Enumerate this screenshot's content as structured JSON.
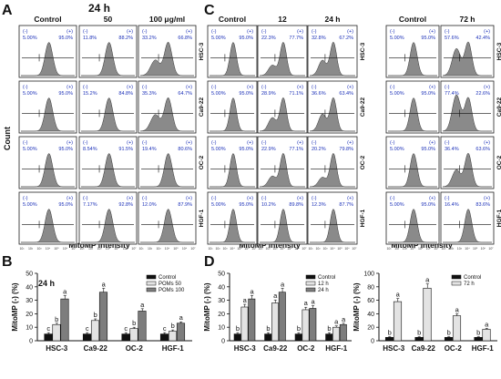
{
  "panel_letters": {
    "A": "A",
    "B": "B",
    "C": "C",
    "D": "D"
  },
  "headers": {
    "A_time": "24 h",
    "A_cols": [
      "Control",
      "50",
      "100 μg/ml"
    ],
    "C_cols": [
      "Control",
      "12",
      "24 h"
    ],
    "C2_cols": [
      "Control",
      "72 h"
    ]
  },
  "row_labels": [
    "HSC-3",
    "Ca9-22",
    "OC-2",
    "HGF-1"
  ],
  "gate_labels": {
    "minus": "(-)",
    "plus": "(+)"
  },
  "axis_labels": {
    "count": "Count",
    "mitomp": "MitoMP intensity",
    "ylabel_bars": "MitoMP (-) (%)",
    "B_time": "24 h"
  },
  "flow_ticks": [
    "10¹",
    "10²",
    "10³",
    "10⁴",
    "10⁵",
    "10⁶",
    "10⁷"
  ],
  "pct": {
    "A": [
      [
        "5.00%",
        "95.0%"
      ],
      [
        "11.8%",
        "88.2%"
      ],
      [
        "33.2%",
        "66.8%"
      ],
      [
        "5.00%",
        "95.0%"
      ],
      [
        "15.2%",
        "84.8%"
      ],
      [
        "35.3%",
        "64.7%"
      ],
      [
        "5.00%",
        "95.0%"
      ],
      [
        "8.54%",
        "91.5%"
      ],
      [
        "19.4%",
        "80.6%"
      ],
      [
        "5.00%",
        "95.0%"
      ],
      [
        "7.17%",
        "92.8%"
      ],
      [
        "12.0%",
        "87.9%"
      ]
    ],
    "C": [
      [
        "5.00%",
        "95.0%"
      ],
      [
        "22.3%",
        "77.7%"
      ],
      [
        "32.8%",
        "67.2%"
      ],
      [
        "5.00%",
        "95.0%"
      ],
      [
        "28.9%",
        "71.1%"
      ],
      [
        "36.6%",
        "63.4%"
      ],
      [
        "5.00%",
        "95.0%"
      ],
      [
        "22.9%",
        "77.1%"
      ],
      [
        "20.2%",
        "79.8%"
      ],
      [
        "5.00%",
        "95.0%"
      ],
      [
        "10.2%",
        "89.8%"
      ],
      [
        "12.3%",
        "87.7%"
      ]
    ],
    "C2": [
      [
        "5.00%",
        "95.0%"
      ],
      [
        "57.6%",
        "42.4%"
      ],
      [
        "5.00%",
        "95.0%"
      ],
      [
        "77.4%",
        "22.6%"
      ],
      [
        "5.00%",
        "95.0%"
      ],
      [
        "36.4%",
        "63.6%"
      ],
      [
        "5.00%",
        "95.0%"
      ],
      [
        "16.4%",
        "83.6%"
      ]
    ]
  },
  "chart_data": [
    {
      "type": "bar",
      "panel": "B",
      "title": "24 h",
      "categories": [
        "HSC-3",
        "Ca9-22",
        "OC-2",
        "HGF-1"
      ],
      "ylabel": "MitoMP (-) (%)",
      "ylim": [
        0,
        50
      ],
      "yticks": [
        0,
        10,
        20,
        30,
        40,
        50
      ],
      "legend_position": "top-right",
      "series": [
        {
          "name": "Control",
          "color": "#111111",
          "values": [
            5,
            5,
            5,
            5
          ],
          "letters": [
            "c",
            "c",
            "c",
            "c"
          ]
        },
        {
          "name": "POMs 50",
          "color": "#e3e3e3",
          "values": [
            12,
            15,
            9,
            7
          ],
          "letters": [
            "b",
            "b",
            "b",
            "b"
          ]
        },
        {
          "name": "POMs 100",
          "color": "#7d7d7d",
          "values": [
            31,
            36,
            22,
            13
          ],
          "letters": [
            "a",
            "a",
            "a",
            "a"
          ]
        }
      ]
    },
    {
      "type": "bar",
      "panel": "D",
      "categories": [
        "HSC-3",
        "Ca9-22",
        "OC-2",
        "HGF-1"
      ],
      "ylabel": "MitoMP (-) (%)",
      "ylim": [
        0,
        50
      ],
      "yticks": [
        0,
        10,
        20,
        30,
        40,
        50
      ],
      "legend_position": "top-right",
      "series": [
        {
          "name": "Control",
          "color": "#111111",
          "values": [
            5,
            5,
            5,
            5
          ],
          "letters": [
            "b",
            "b",
            "b",
            "b"
          ]
        },
        {
          "name": "12 h",
          "color": "#e3e3e3",
          "values": [
            25,
            28,
            23,
            10
          ],
          "letters": [
            "a",
            "a",
            "a",
            "a"
          ]
        },
        {
          "name": "24 h",
          "color": "#7d7d7d",
          "values": [
            31,
            36,
            24,
            12
          ],
          "letters": [
            "a",
            "a",
            "a",
            "a"
          ]
        }
      ]
    },
    {
      "type": "bar",
      "panel": "D-right",
      "categories": [
        "HSC-3",
        "Ca9-22",
        "OC-2",
        "HGF-1"
      ],
      "ylabel": "MitoMP (-) (%)",
      "ylim": [
        0,
        100
      ],
      "yticks": [
        0,
        20,
        40,
        60,
        80,
        100
      ],
      "legend_position": "top-right",
      "series": [
        {
          "name": "Control",
          "color": "#111111",
          "values": [
            5,
            5,
            5,
            5
          ],
          "letters": [
            "b",
            "b",
            "b",
            "b"
          ]
        },
        {
          "name": "72 h",
          "color": "#e3e3e3",
          "values": [
            58,
            78,
            37,
            17
          ],
          "letters": [
            "a",
            "a",
            "a",
            "a"
          ]
        }
      ]
    }
  ]
}
